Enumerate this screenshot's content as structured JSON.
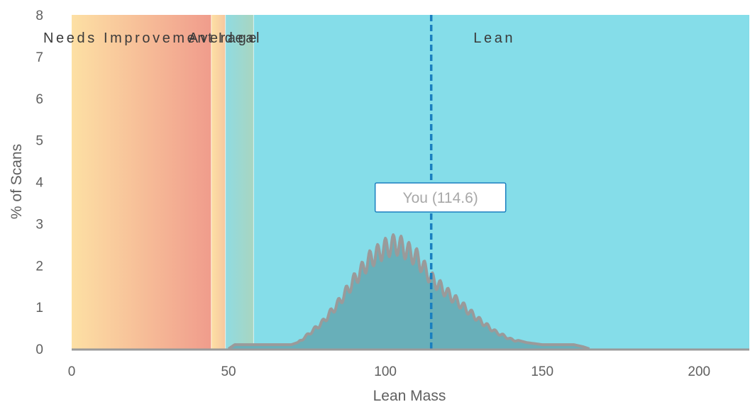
{
  "chart_data": {
    "type": "area",
    "xlabel": "Lean Mass",
    "ylabel": "% of Scans",
    "xlim": [
      0,
      216
    ],
    "ylim": [
      0,
      8
    ],
    "x_ticks": [
      0,
      50,
      100,
      150,
      200
    ],
    "y_ticks": [
      0,
      1,
      2,
      3,
      4,
      5,
      6,
      7,
      8
    ],
    "grid": false,
    "bands": [
      {
        "label": "Needs Improvement",
        "from": 0,
        "to": 44.5,
        "colors": [
          "#fde0a4",
          "#f09c8c"
        ]
      },
      {
        "label": "Average",
        "from": 44.5,
        "to": 49,
        "colors": [
          "#fde0a4",
          "#f6c7a0"
        ]
      },
      {
        "label": "Ideal",
        "from": 49,
        "to": 58,
        "colors": [
          "#8fdbe2",
          "#a9d5c0"
        ]
      },
      {
        "label": "Lean",
        "from": 58,
        "to": 216,
        "colors": [
          "#85dde9",
          "#85dde9"
        ]
      }
    ],
    "marker": {
      "label": "You (114.6)",
      "x": 114.6
    },
    "series": [
      {
        "x": [
          50,
          52,
          60,
          70,
          72,
          75,
          80,
          85,
          90,
          95,
          100,
          103,
          105,
          110,
          114.6,
          120,
          125,
          130,
          135,
          140,
          145,
          150,
          155,
          160,
          163,
          165
        ],
        "values": [
          0,
          0.1,
          0.1,
          0.1,
          0.15,
          0.35,
          0.7,
          1.2,
          1.8,
          2.35,
          2.65,
          2.75,
          2.7,
          2.4,
          1.85,
          1.45,
          1.1,
          0.75,
          0.45,
          0.25,
          0.15,
          0.1,
          0.1,
          0.1,
          0.05,
          0
        ]
      }
    ]
  }
}
